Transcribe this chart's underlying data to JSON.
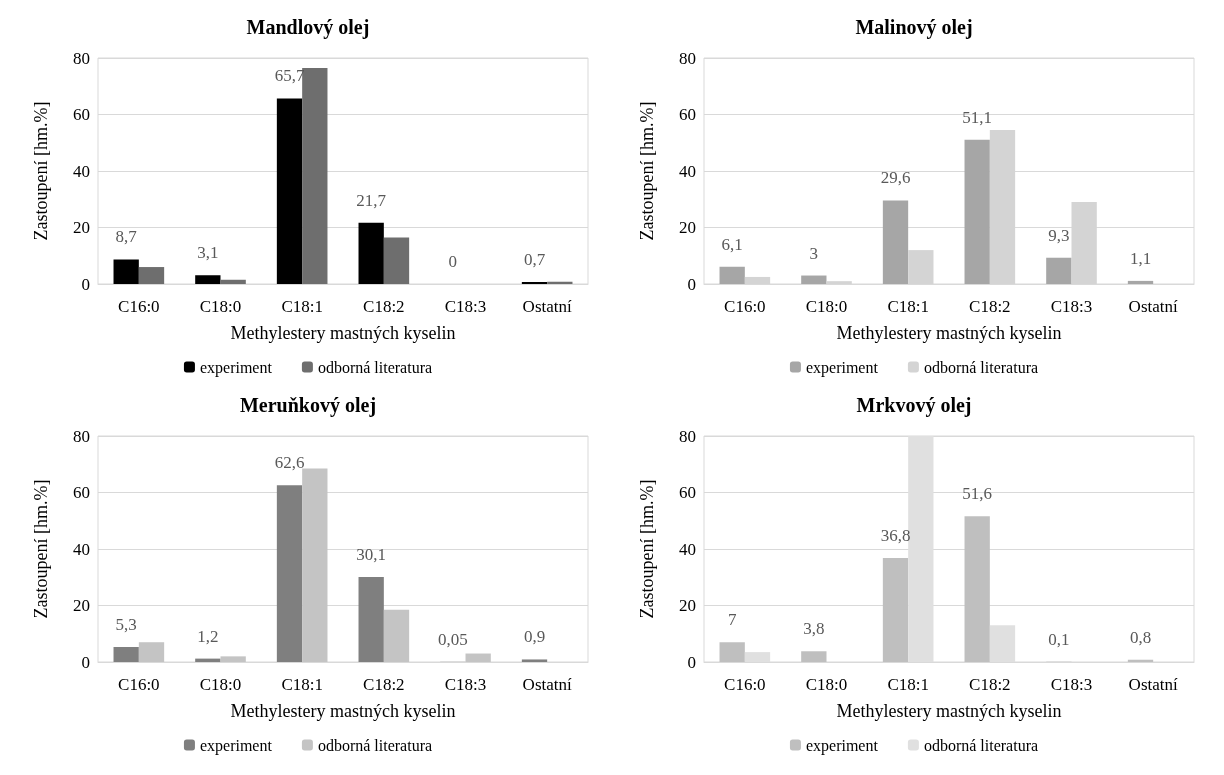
{
  "chart_data": [
    {
      "type": "bar",
      "title": "Mandlový olej",
      "xlabel": "Methylestery mastných kyselin",
      "ylabel": "Zastoupení [hm.%]",
      "categories": [
        "C16:0",
        "C18:0",
        "C18:1",
        "C18:2",
        "C18:3",
        "Ostatní"
      ],
      "ylim": [
        0,
        80
      ],
      "yticks": [
        0,
        20,
        40,
        60,
        80
      ],
      "grid": "y",
      "legend": "bottom",
      "series": [
        {
          "name": "experiment",
          "color": "#000000",
          "values": [
            8.7,
            3.1,
            65.7,
            21.7,
            0,
            0.7
          ],
          "value_labels": [
            "8,7",
            "3,1",
            "65,7",
            "21,7",
            "0",
            "0,7"
          ]
        },
        {
          "name": "odborná literatura",
          "color": "#6e6e6e",
          "values": [
            6,
            1.5,
            76.5,
            16.5,
            0,
            0.8
          ]
        }
      ]
    },
    {
      "type": "bar",
      "title": "Malinový olej",
      "xlabel": "Methylestery mastných kyselin",
      "ylabel": "Zastoupení [hm.%]",
      "categories": [
        "C16:0",
        "C18:0",
        "C18:1",
        "C18:2",
        "C18:3",
        "Ostatní"
      ],
      "ylim": [
        0,
        80
      ],
      "yticks": [
        0,
        20,
        40,
        60,
        80
      ],
      "grid": "y",
      "legend": "bottom",
      "series": [
        {
          "name": "experiment",
          "color": "#a6a6a6",
          "values": [
            6.1,
            3,
            29.6,
            51.1,
            9.3,
            1.1
          ],
          "value_labels": [
            "6,1",
            "3",
            "29,6",
            "51,1",
            "9,3",
            "1,1"
          ]
        },
        {
          "name": "odborná literatura",
          "color": "#d4d4d4",
          "values": [
            2.5,
            1,
            12,
            54.5,
            29,
            0
          ]
        }
      ]
    },
    {
      "type": "bar",
      "title": "Meruňkový olej",
      "xlabel": "Methylestery mastných kyselin",
      "ylabel": "Zastoupení [hm.%]",
      "categories": [
        "C16:0",
        "C18:0",
        "C18:1",
        "C18:2",
        "C18:3",
        "Ostatní"
      ],
      "ylim": [
        0,
        80
      ],
      "yticks": [
        0,
        20,
        40,
        60,
        80
      ],
      "grid": "y",
      "legend": "bottom",
      "series": [
        {
          "name": "experiment",
          "color": "#7f7f7f",
          "values": [
            5.3,
            1.2,
            62.6,
            30.1,
            0.05,
            0.9
          ],
          "value_labels": [
            "5,3",
            "1,2",
            "62,6",
            "30,1",
            "0,05",
            "0,9"
          ]
        },
        {
          "name": "odborná literatura",
          "color": "#c4c4c4",
          "values": [
            7,
            2,
            68.5,
            18.5,
            3,
            0
          ]
        }
      ]
    },
    {
      "type": "bar",
      "title": "Mrkvový olej",
      "xlabel": "Methylestery mastných kyselin",
      "ylabel": "Zastoupení [hm.%]",
      "categories": [
        "C16:0",
        "C18:0",
        "C18:1",
        "C18:2",
        "C18:3",
        "Ostatní"
      ],
      "ylim": [
        0,
        80
      ],
      "yticks": [
        0,
        20,
        40,
        60,
        80
      ],
      "grid": "y",
      "legend": "bottom",
      "series": [
        {
          "name": "experiment",
          "color": "#bfbfbf",
          "values": [
            7,
            3.8,
            36.8,
            51.6,
            0.1,
            0.8
          ],
          "value_labels": [
            "7",
            "3,8",
            "36,8",
            "51,6",
            "0,1",
            "0,8"
          ]
        },
        {
          "name": "odborná literatura",
          "color": "#e0e0e0",
          "values": [
            3.5,
            0,
            80,
            13,
            0,
            0
          ]
        }
      ]
    }
  ]
}
